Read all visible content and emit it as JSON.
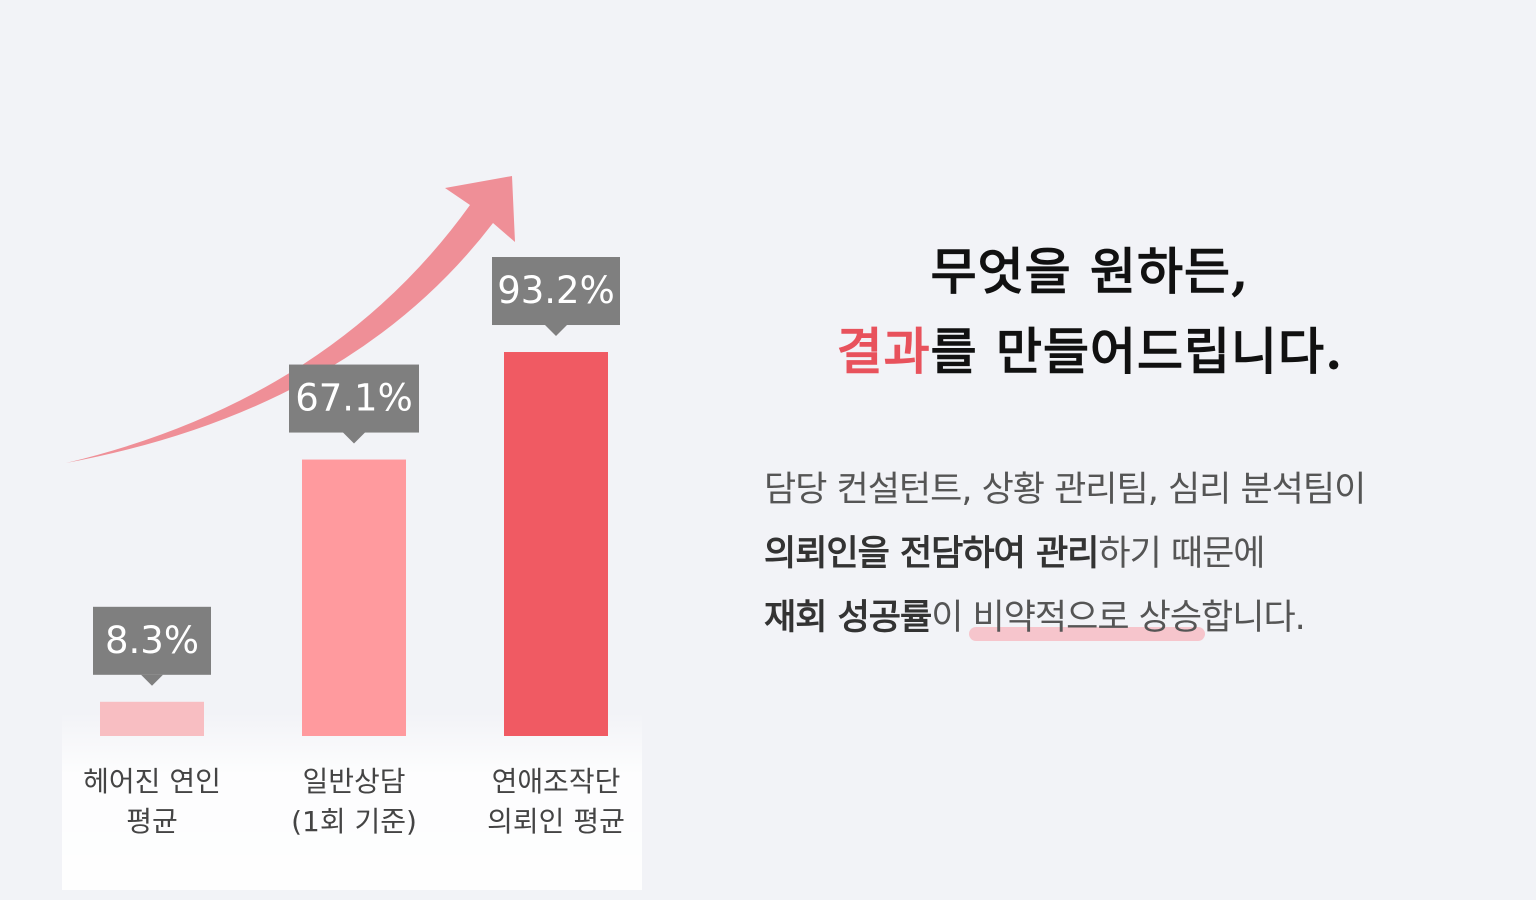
{
  "chart_data": {
    "type": "bar",
    "categories": [
      [
        "헤어진 연인",
        "평균"
      ],
      [
        "일반상담",
        "(1회 기준)"
      ],
      [
        "연애조작단",
        "의뢰인 평균"
      ]
    ],
    "values": [
      8.3,
      67.1,
      93.2
    ],
    "value_labels": [
      "8.3%",
      "67.1%",
      "93.2%"
    ],
    "unit": "%",
    "ylim": [
      0,
      100
    ],
    "colors": [
      "#f8bec2",
      "#ff9a9e",
      "#f05a63"
    ],
    "label_box_color": "#7f7f7f",
    "arrow_color": "#ef8f97",
    "grid": false
  },
  "headline": {
    "line1": "무엇을 원하든,",
    "accent": "결과",
    "line2_rest": "를 만들어드립니다."
  },
  "body": {
    "line1": "담당 컨설턴트, 상황 관리팀, 심리 분석팀이",
    "line2_bold": "의뢰인을 전담하여 관리",
    "line2_rest": "하기 때문에",
    "line3_bold": "재회 성공률",
    "line3_mid": "이 ",
    "line3_highlight": "비약적으로 상승",
    "line3_end": "합니다."
  }
}
